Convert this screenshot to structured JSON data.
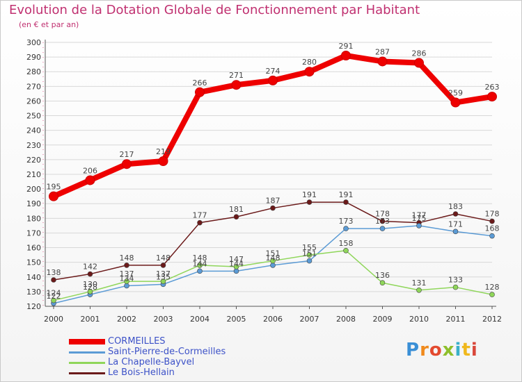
{
  "chart_data": {
    "type": "line",
    "title": "Evolution de la Dotation Globale de Fonctionnement par Habitant",
    "subtitle": "(en € et par an)",
    "xlabel": "",
    "ylabel": "",
    "x": [
      2000,
      2001,
      2002,
      2003,
      2004,
      2005,
      2006,
      2007,
      2008,
      2009,
      2010,
      2011,
      2012
    ],
    "ylim": [
      120,
      300
    ],
    "ytick_step": 10,
    "grid": true,
    "legend_position": "bottom-left",
    "series": [
      {
        "name": "CORMEILLES",
        "color": "#ee0000",
        "values": [
          195,
          206,
          217,
          219,
          266,
          271,
          274,
          280,
          291,
          287,
          286,
          259,
          263
        ]
      },
      {
        "name": "Saint-Pierre-de-Cormeilles",
        "color": "#5b9bd5",
        "values": [
          122,
          128,
          134,
          135,
          144,
          144,
          148,
          151,
          173,
          173,
          175,
          171,
          168
        ]
      },
      {
        "name": "La Chapelle-Bayvel",
        "color": "#8fd65a",
        "values": [
          124,
          130,
          137,
          137,
          148,
          147,
          151,
          155,
          158,
          136,
          131,
          133,
          128
        ]
      },
      {
        "name": "Le Bois-Hellain",
        "color": "#6b1a1a",
        "values": [
          138,
          142,
          148,
          148,
          177,
          181,
          187,
          191,
          191,
          178,
          177,
          183,
          178
        ]
      }
    ]
  },
  "logo": {
    "letters": [
      "P",
      "r",
      "o",
      "x",
      "i",
      "t",
      "i"
    ]
  }
}
